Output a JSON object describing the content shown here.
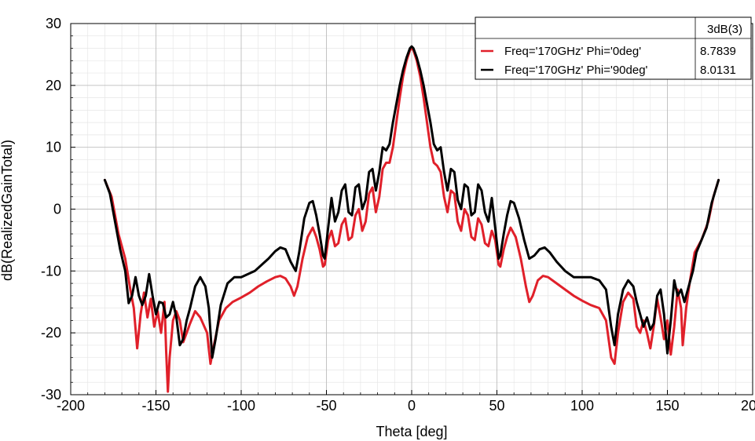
{
  "chart_data": {
    "type": "line",
    "title": "",
    "xlabel": "Theta [deg]",
    "ylabel": "dB(RealizedGainTotal)",
    "xlim": [
      -200,
      200
    ],
    "ylim": [
      -30,
      30
    ],
    "x_ticks": [
      "-200",
      "-150",
      "-100",
      "-50",
      "0",
      "50",
      "100",
      "150",
      "200"
    ],
    "y_ticks": [
      "-30",
      "-20",
      "-10",
      "0",
      "10",
      "20",
      "30"
    ],
    "grid": true,
    "legend_position": "top-right",
    "legend_header": "3dB(3)",
    "series": [
      {
        "name": "Freq='170GHz' Phi='0deg'",
        "value_label": "8.7839",
        "color": "#e0202a",
        "points": [
          [
            -180,
            4.7
          ],
          [
            -176,
            2
          ],
          [
            -172,
            -4
          ],
          [
            -168,
            -8
          ],
          [
            -165,
            -13
          ],
          [
            -163,
            -16
          ],
          [
            -161,
            -22.5
          ],
          [
            -159,
            -17
          ],
          [
            -157,
            -13.5
          ],
          [
            -155,
            -17.5
          ],
          [
            -153,
            -14.5
          ],
          [
            -151,
            -19
          ],
          [
            -149,
            -16.5
          ],
          [
            -147,
            -20
          ],
          [
            -145,
            -15
          ],
          [
            -144,
            -23
          ],
          [
            -143,
            -29.5
          ],
          [
            -142,
            -24
          ],
          [
            -140,
            -18
          ],
          [
            -138,
            -16.5
          ],
          [
            -136,
            -18
          ],
          [
            -134,
            -21.5
          ],
          [
            -132,
            -20
          ],
          [
            -130,
            -18.5
          ],
          [
            -127,
            -16.5
          ],
          [
            -124,
            -17.5
          ],
          [
            -120,
            -20
          ],
          [
            -118,
            -25
          ],
          [
            -116,
            -22
          ],
          [
            -113,
            -18
          ],
          [
            -109,
            -16
          ],
          [
            -105,
            -15
          ],
          [
            -100,
            -14.3
          ],
          [
            -95,
            -13.5
          ],
          [
            -90,
            -12.5
          ],
          [
            -85,
            -11.7
          ],
          [
            -80,
            -11
          ],
          [
            -77,
            -10.8
          ],
          [
            -74,
            -11.2
          ],
          [
            -71,
            -12.5
          ],
          [
            -69,
            -14
          ],
          [
            -67,
            -12.5
          ],
          [
            -64,
            -8
          ],
          [
            -61,
            -4.5
          ],
          [
            -58,
            -3
          ],
          [
            -56,
            -4.5
          ],
          [
            -54,
            -6.5
          ],
          [
            -52,
            -9.3
          ],
          [
            -51,
            -9
          ],
          [
            -49,
            -5
          ],
          [
            -47,
            -3.5
          ],
          [
            -45,
            -6
          ],
          [
            -43,
            -5.5
          ],
          [
            -41,
            -2.5
          ],
          [
            -39,
            -1.5
          ],
          [
            -37,
            -5
          ],
          [
            -35,
            -4.5
          ],
          [
            -33,
            -1
          ],
          [
            -31,
            0
          ],
          [
            -29,
            -3.5
          ],
          [
            -27,
            -2
          ],
          [
            -25,
            2.5
          ],
          [
            -23,
            3.5
          ],
          [
            -21,
            -0.5
          ],
          [
            -19,
            2
          ],
          [
            -17,
            6.5
          ],
          [
            -15,
            7.5
          ],
          [
            -13,
            7.5
          ],
          [
            -11,
            10
          ],
          [
            -9,
            14
          ],
          [
            -7,
            18
          ],
          [
            -5,
            21.5
          ],
          [
            -3,
            24
          ],
          [
            -1,
            25.7
          ],
          [
            0,
            26
          ],
          [
            1,
            25.7
          ],
          [
            3,
            24
          ],
          [
            5,
            21.5
          ],
          [
            7,
            18
          ],
          [
            9,
            14
          ],
          [
            11,
            10
          ],
          [
            13,
            7.5
          ],
          [
            15,
            7
          ],
          [
            17,
            6
          ],
          [
            19,
            2
          ],
          [
            21,
            -0.5
          ],
          [
            23,
            3
          ],
          [
            25,
            2.5
          ],
          [
            27,
            -2
          ],
          [
            29,
            -3.5
          ],
          [
            31,
            0
          ],
          [
            33,
            -1
          ],
          [
            35,
            -4.5
          ],
          [
            37,
            -5
          ],
          [
            39,
            -1.5
          ],
          [
            41,
            -2.5
          ],
          [
            43,
            -5.5
          ],
          [
            45,
            -6
          ],
          [
            47,
            -3.5
          ],
          [
            49,
            -5
          ],
          [
            51,
            -9
          ],
          [
            52,
            -9.3
          ],
          [
            54,
            -6.5
          ],
          [
            56,
            -4.5
          ],
          [
            58,
            -3
          ],
          [
            61,
            -4.5
          ],
          [
            64,
            -8
          ],
          [
            67,
            -12.5
          ],
          [
            69,
            -15
          ],
          [
            71,
            -14
          ],
          [
            74,
            -11.5
          ],
          [
            77,
            -10.8
          ],
          [
            80,
            -11
          ],
          [
            85,
            -12
          ],
          [
            90,
            -13
          ],
          [
            95,
            -14
          ],
          [
            100,
            -14.8
          ],
          [
            105,
            -15.5
          ],
          [
            110,
            -16
          ],
          [
            114,
            -18
          ],
          [
            117,
            -24
          ],
          [
            119,
            -25
          ],
          [
            121,
            -20
          ],
          [
            124,
            -15
          ],
          [
            127,
            -13.5
          ],
          [
            130,
            -14.5
          ],
          [
            132,
            -19
          ],
          [
            134,
            -20
          ],
          [
            136,
            -18
          ],
          [
            138,
            -20
          ],
          [
            140,
            -22.5
          ],
          [
            142,
            -19
          ],
          [
            144,
            -14.5
          ],
          [
            146,
            -17.5
          ],
          [
            148,
            -21
          ],
          [
            150,
            -18
          ],
          [
            152,
            -23.5
          ],
          [
            154,
            -19
          ],
          [
            156,
            -13
          ],
          [
            158,
            -16
          ],
          [
            159,
            -22
          ],
          [
            161,
            -16
          ],
          [
            163,
            -12
          ],
          [
            166,
            -7
          ],
          [
            170,
            -5
          ],
          [
            174,
            -2
          ],
          [
            177,
            2
          ],
          [
            180,
            4.7
          ]
        ]
      },
      {
        "name": "Freq='170GHz' Phi='90deg'",
        "value_label": "8.0131",
        "color": "#000000",
        "points": [
          [
            -180,
            4.7
          ],
          [
            -177,
            2.5
          ],
          [
            -174,
            -2
          ],
          [
            -171,
            -6.5
          ],
          [
            -168,
            -10
          ],
          [
            -166,
            -15.2
          ],
          [
            -164,
            -14
          ],
          [
            -162,
            -11
          ],
          [
            -160,
            -14
          ],
          [
            -158,
            -15.5
          ],
          [
            -156,
            -14
          ],
          [
            -154,
            -10.5
          ],
          [
            -152,
            -14
          ],
          [
            -150,
            -17
          ],
          [
            -148,
            -15
          ],
          [
            -146,
            -15.2
          ],
          [
            -144,
            -17.5
          ],
          [
            -142,
            -17
          ],
          [
            -140,
            -15
          ],
          [
            -138,
            -17.5
          ],
          [
            -136,
            -22
          ],
          [
            -134,
            -21
          ],
          [
            -132,
            -18
          ],
          [
            -130,
            -16
          ],
          [
            -127,
            -12.5
          ],
          [
            -124,
            -11
          ],
          [
            -121,
            -12.5
          ],
          [
            -119,
            -16
          ],
          [
            -117,
            -24
          ],
          [
            -115,
            -21
          ],
          [
            -112,
            -15.5
          ],
          [
            -108,
            -12
          ],
          [
            -104,
            -11
          ],
          [
            -100,
            -11
          ],
          [
            -96,
            -10.5
          ],
          [
            -92,
            -10
          ],
          [
            -88,
            -9
          ],
          [
            -84,
            -8
          ],
          [
            -80,
            -6.8
          ],
          [
            -77,
            -6.2
          ],
          [
            -74,
            -6.5
          ],
          [
            -71,
            -8.5
          ],
          [
            -68,
            -10
          ],
          [
            -66,
            -7
          ],
          [
            -63,
            -1.5
          ],
          [
            -60,
            1
          ],
          [
            -58,
            1.3
          ],
          [
            -56,
            -1
          ],
          [
            -54,
            -4
          ],
          [
            -52,
            -7.5
          ],
          [
            -51,
            -8
          ],
          [
            -49,
            -3
          ],
          [
            -47,
            1.8
          ],
          [
            -45,
            -2
          ],
          [
            -43,
            -0.5
          ],
          [
            -41,
            3
          ],
          [
            -39,
            4
          ],
          [
            -37,
            -0.5
          ],
          [
            -35,
            -1
          ],
          [
            -33,
            3.5
          ],
          [
            -31,
            4
          ],
          [
            -29,
            0
          ],
          [
            -27,
            1.5
          ],
          [
            -25,
            6
          ],
          [
            -23,
            6.5
          ],
          [
            -21,
            3
          ],
          [
            -19,
            6
          ],
          [
            -17,
            10
          ],
          [
            -15,
            9.5
          ],
          [
            -13,
            10.5
          ],
          [
            -11,
            14
          ],
          [
            -9,
            17
          ],
          [
            -7,
            20
          ],
          [
            -5,
            22.5
          ],
          [
            -3,
            24.5
          ],
          [
            -1,
            26
          ],
          [
            0,
            26.3
          ],
          [
            1,
            26
          ],
          [
            3,
            24.5
          ],
          [
            5,
            22.5
          ],
          [
            7,
            20
          ],
          [
            9,
            17
          ],
          [
            11,
            14
          ],
          [
            13,
            10.5
          ],
          [
            15,
            9.5
          ],
          [
            17,
            10
          ],
          [
            19,
            6
          ],
          [
            21,
            3
          ],
          [
            23,
            6.5
          ],
          [
            25,
            6
          ],
          [
            27,
            1.5
          ],
          [
            29,
            0
          ],
          [
            31,
            4
          ],
          [
            33,
            3.5
          ],
          [
            35,
            -1
          ],
          [
            37,
            -0.5
          ],
          [
            39,
            4
          ],
          [
            41,
            3
          ],
          [
            43,
            -0.5
          ],
          [
            45,
            -2
          ],
          [
            47,
            1.8
          ],
          [
            49,
            -3
          ],
          [
            51,
            -8
          ],
          [
            52,
            -7.5
          ],
          [
            54,
            -4
          ],
          [
            56,
            -1
          ],
          [
            58,
            1.3
          ],
          [
            60,
            1
          ],
          [
            63,
            -1.5
          ],
          [
            66,
            -5
          ],
          [
            69,
            -8
          ],
          [
            72,
            -7.5
          ],
          [
            75,
            -6.5
          ],
          [
            78,
            -6.2
          ],
          [
            81,
            -7
          ],
          [
            85,
            -8.5
          ],
          [
            90,
            -10
          ],
          [
            95,
            -11
          ],
          [
            100,
            -11
          ],
          [
            105,
            -11
          ],
          [
            110,
            -11.5
          ],
          [
            114,
            -13
          ],
          [
            117,
            -19
          ],
          [
            119,
            -22
          ],
          [
            121,
            -17
          ],
          [
            124,
            -13
          ],
          [
            127,
            -11.5
          ],
          [
            130,
            -12.5
          ],
          [
            132,
            -15
          ],
          [
            134,
            -17
          ],
          [
            136,
            -19
          ],
          [
            138,
            -17.5
          ],
          [
            140,
            -19.5
          ],
          [
            142,
            -18.5
          ],
          [
            144,
            -14
          ],
          [
            146,
            -13
          ],
          [
            148,
            -17
          ],
          [
            150,
            -23.3
          ],
          [
            152,
            -18
          ],
          [
            154,
            -11.5
          ],
          [
            156,
            -14
          ],
          [
            158,
            -13
          ],
          [
            160,
            -15
          ],
          [
            162,
            -13
          ],
          [
            165,
            -10
          ],
          [
            167,
            -7
          ],
          [
            170,
            -5
          ],
          [
            173,
            -3
          ],
          [
            176,
            1
          ],
          [
            180,
            4.7
          ]
        ]
      }
    ]
  }
}
